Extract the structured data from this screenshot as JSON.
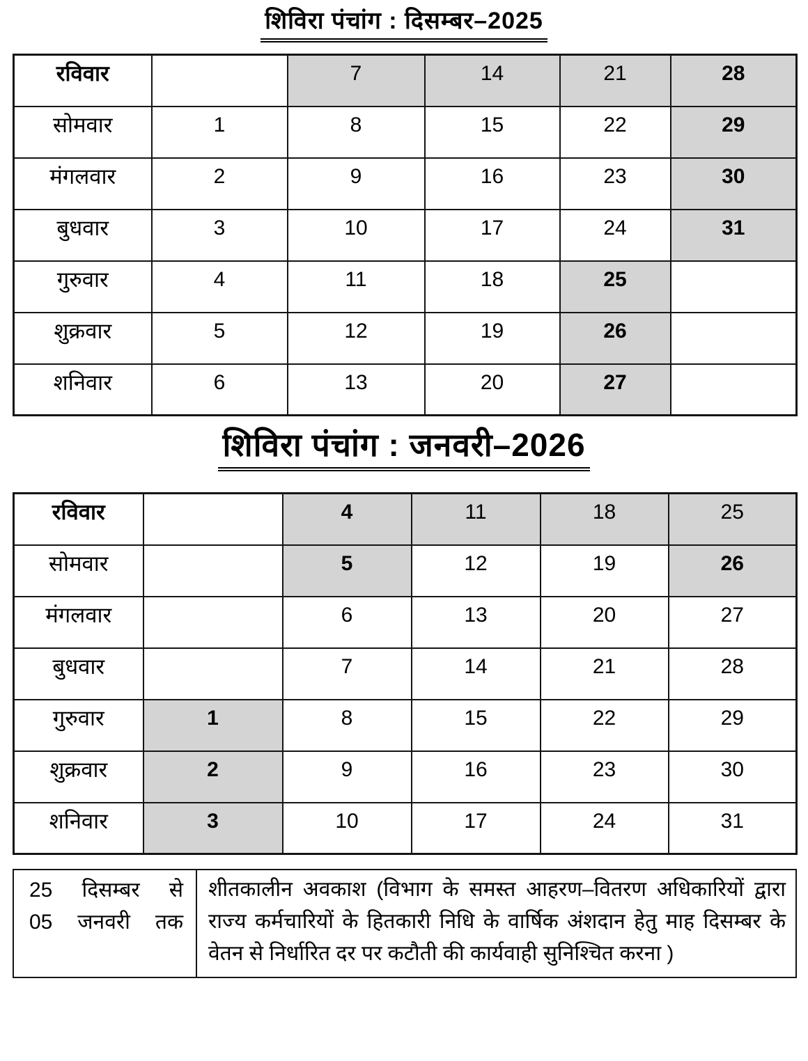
{
  "december": {
    "title": "शिविरा पंचांग : दिसम्बर–2025",
    "rows": [
      {
        "day": "रविवार",
        "day_bold": true,
        "cells": [
          {
            "date": "",
            "shaded": false,
            "bold": false
          },
          {
            "date": "7",
            "shaded": true,
            "bold": false
          },
          {
            "date": "14",
            "shaded": true,
            "bold": false
          },
          {
            "date": "21",
            "shaded": true,
            "bold": false
          },
          {
            "date": "28",
            "shaded": true,
            "bold": true
          }
        ]
      },
      {
        "day": "सोमवार",
        "day_bold": false,
        "cells": [
          {
            "date": "1",
            "shaded": false,
            "bold": false
          },
          {
            "date": "8",
            "shaded": false,
            "bold": false
          },
          {
            "date": "15",
            "shaded": false,
            "bold": false
          },
          {
            "date": "22",
            "shaded": false,
            "bold": false
          },
          {
            "date": "29",
            "shaded": true,
            "bold": true
          }
        ]
      },
      {
        "day": "मंगलवार",
        "day_bold": false,
        "cells": [
          {
            "date": "2",
            "shaded": false,
            "bold": false
          },
          {
            "date": "9",
            "shaded": false,
            "bold": false
          },
          {
            "date": "16",
            "shaded": false,
            "bold": false
          },
          {
            "date": "23",
            "shaded": false,
            "bold": false
          },
          {
            "date": "30",
            "shaded": true,
            "bold": true
          }
        ]
      },
      {
        "day": "बुधवार",
        "day_bold": false,
        "cells": [
          {
            "date": "3",
            "shaded": false,
            "bold": false
          },
          {
            "date": "10",
            "shaded": false,
            "bold": false
          },
          {
            "date": "17",
            "shaded": false,
            "bold": false
          },
          {
            "date": "24",
            "shaded": false,
            "bold": false
          },
          {
            "date": "31",
            "shaded": true,
            "bold": true
          }
        ]
      },
      {
        "day": "गुरुवार",
        "day_bold": false,
        "cells": [
          {
            "date": "4",
            "shaded": false,
            "bold": false
          },
          {
            "date": "11",
            "shaded": false,
            "bold": false
          },
          {
            "date": "18",
            "shaded": false,
            "bold": false
          },
          {
            "date": "25",
            "shaded": true,
            "bold": true
          },
          {
            "date": "",
            "shaded": false,
            "bold": false
          }
        ]
      },
      {
        "day": "शुक्रवार",
        "day_bold": false,
        "cells": [
          {
            "date": "5",
            "shaded": false,
            "bold": false
          },
          {
            "date": "12",
            "shaded": false,
            "bold": false
          },
          {
            "date": "19",
            "shaded": false,
            "bold": false
          },
          {
            "date": "26",
            "shaded": true,
            "bold": true
          },
          {
            "date": "",
            "shaded": false,
            "bold": false
          }
        ]
      },
      {
        "day": "शनिवार",
        "day_bold": false,
        "cells": [
          {
            "date": "6",
            "shaded": false,
            "bold": false
          },
          {
            "date": "13",
            "shaded": false,
            "bold": false
          },
          {
            "date": "20",
            "shaded": false,
            "bold": false
          },
          {
            "date": "27",
            "shaded": true,
            "bold": true
          },
          {
            "date": "",
            "shaded": false,
            "bold": false
          }
        ]
      }
    ]
  },
  "january": {
    "title": "शिविरा पंचांग : जनवरी–2026",
    "rows": [
      {
        "day": "रविवार",
        "day_bold": true,
        "cells": [
          {
            "date": "",
            "shaded": false,
            "bold": false
          },
          {
            "date": "4",
            "shaded": true,
            "bold": true
          },
          {
            "date": "11",
            "shaded": true,
            "bold": false
          },
          {
            "date": "18",
            "shaded": true,
            "bold": false
          },
          {
            "date": "25",
            "shaded": true,
            "bold": false
          }
        ]
      },
      {
        "day": "सोमवार",
        "day_bold": false,
        "cells": [
          {
            "date": "",
            "shaded": false,
            "bold": false
          },
          {
            "date": "5",
            "shaded": true,
            "bold": true
          },
          {
            "date": "12",
            "shaded": false,
            "bold": false
          },
          {
            "date": "19",
            "shaded": false,
            "bold": false
          },
          {
            "date": "26",
            "shaded": true,
            "bold": true
          }
        ]
      },
      {
        "day": "मंगलवार",
        "day_bold": false,
        "cells": [
          {
            "date": "",
            "shaded": false,
            "bold": false
          },
          {
            "date": "6",
            "shaded": false,
            "bold": false
          },
          {
            "date": "13",
            "shaded": false,
            "bold": false
          },
          {
            "date": "20",
            "shaded": false,
            "bold": false
          },
          {
            "date": "27",
            "shaded": false,
            "bold": false
          }
        ]
      },
      {
        "day": "बुधवार",
        "day_bold": false,
        "cells": [
          {
            "date": "",
            "shaded": false,
            "bold": false
          },
          {
            "date": "7",
            "shaded": false,
            "bold": false
          },
          {
            "date": "14",
            "shaded": false,
            "bold": false
          },
          {
            "date": "21",
            "shaded": false,
            "bold": false
          },
          {
            "date": "28",
            "shaded": false,
            "bold": false
          }
        ]
      },
      {
        "day": "गुरुवार",
        "day_bold": false,
        "cells": [
          {
            "date": "1",
            "shaded": true,
            "bold": true
          },
          {
            "date": "8",
            "shaded": false,
            "bold": false
          },
          {
            "date": "15",
            "shaded": false,
            "bold": false
          },
          {
            "date": "22",
            "shaded": false,
            "bold": false
          },
          {
            "date": "29",
            "shaded": false,
            "bold": false
          }
        ]
      },
      {
        "day": "शुक्रवार",
        "day_bold": false,
        "cells": [
          {
            "date": "2",
            "shaded": true,
            "bold": true
          },
          {
            "date": "9",
            "shaded": false,
            "bold": false
          },
          {
            "date": "16",
            "shaded": false,
            "bold": false
          },
          {
            "date": "23",
            "shaded": false,
            "bold": false
          },
          {
            "date": "30",
            "shaded": false,
            "bold": false
          }
        ]
      },
      {
        "day": "शनिवार",
        "day_bold": false,
        "cells": [
          {
            "date": "3",
            "shaded": true,
            "bold": true
          },
          {
            "date": "10",
            "shaded": false,
            "bold": false
          },
          {
            "date": "17",
            "shaded": false,
            "bold": false
          },
          {
            "date": "24",
            "shaded": false,
            "bold": false
          },
          {
            "date": "31",
            "shaded": false,
            "bold": false
          }
        ]
      }
    ]
  },
  "note": {
    "period_line1": "25 दिसम्बर से",
    "period_line2": "05 जनवरी तक",
    "description": "शीतकालीन अवकाश (विभाग के समस्त आहरण–वितरण अधिकारियों द्वारा राज्य कर्मचारियों के हितकारी निधि के वार्षिक अंशदान हेतु माह दिसम्बर के वेतन से निर्धारित दर पर कटौती की कार्यवाही सुनिश्चित करना )"
  },
  "colors": {
    "shaded_cell": "#d4d4d4",
    "border": "#141414",
    "text": "#000000",
    "background": "#ffffff"
  }
}
